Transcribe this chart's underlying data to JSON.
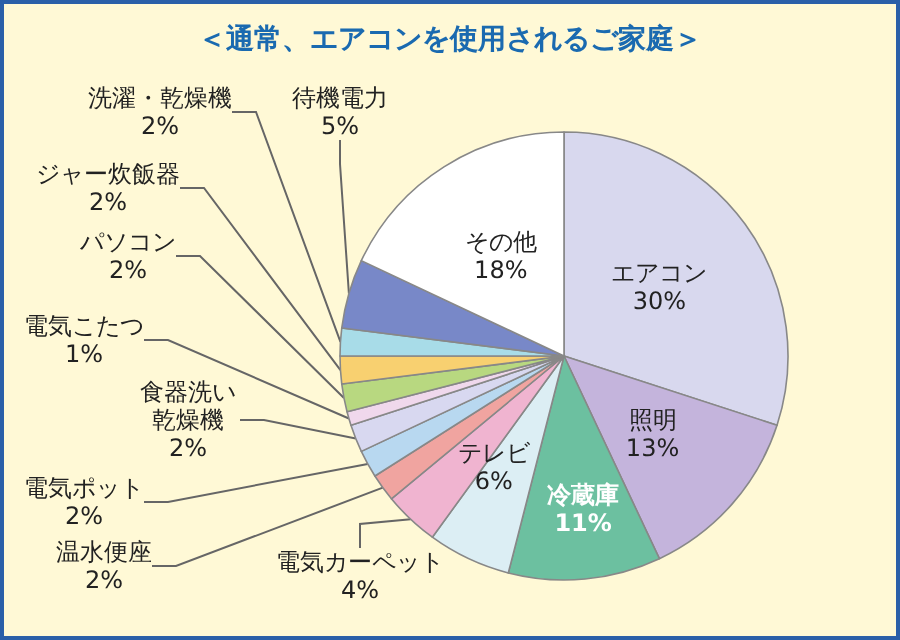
{
  "chart_data": {
    "type": "pie",
    "title": "＜通常、エアコンを使用されるご家庭＞",
    "categories": [
      "エアコン",
      "照明",
      "冷蔵庫",
      "テレビ",
      "電気カーペット",
      "温水便座",
      "電気ポット",
      "食器洗い乾燥機",
      "電気こたつ",
      "パソコン",
      "ジャー炊飯器",
      "洗濯・乾燥機",
      "待機電力",
      "その他"
    ],
    "values": [
      30,
      13,
      11,
      6,
      4,
      2,
      2,
      2,
      1,
      2,
      2,
      2,
      5,
      18
    ],
    "value_labels": [
      "30%",
      "13%",
      "11%",
      "6%",
      "4%",
      "2%",
      "2%",
      "2%",
      "1%",
      "2%",
      "2%",
      "2%",
      "5%",
      "18%"
    ],
    "colors": [
      "#d8d8ee",
      "#c4b4dc",
      "#6cc0a0",
      "#dceef4",
      "#f0b4d0",
      "#f0a4a0",
      "#b8d8f0",
      "#d8d8f0",
      "#f0d8ec",
      "#b8d880",
      "#f8d070",
      "#a8dce8",
      "#7888c8",
      "#ffffff"
    ],
    "legend": false
  }
}
